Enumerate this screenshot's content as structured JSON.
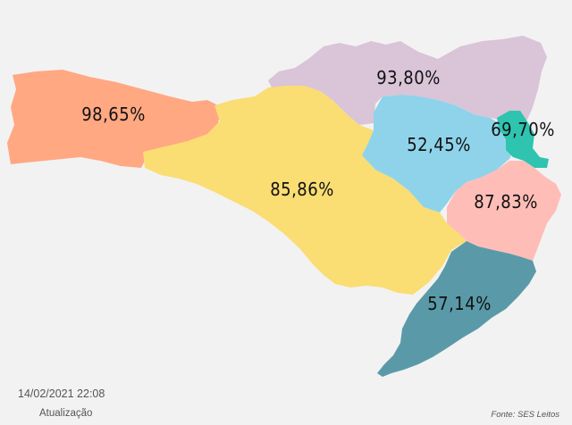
{
  "map": {
    "regions": [
      {
        "id": "grande-oeste",
        "label": "98,65%",
        "color": "#ffa882"
      },
      {
        "id": "meio-oeste-serra",
        "label": "85,86%",
        "color": "#fadd73"
      },
      {
        "id": "norte",
        "label": "93,80%",
        "color": "#d9c4d8"
      },
      {
        "id": "vale-itajai",
        "label": "52,45%",
        "color": "#8fd3ea"
      },
      {
        "id": "foz-itajai",
        "label": "69,70%",
        "color": "#2ec4b0"
      },
      {
        "id": "grande-florianopolis",
        "label": "87,83%",
        "color": "#ffbdb8"
      },
      {
        "id": "sul",
        "label": "57,14%",
        "color": "#5a9aa8"
      }
    ]
  },
  "footer": {
    "timestamp": "14/02/2021 22:08",
    "timestamp_label": "Atualização",
    "source": "Fonte: SES Leitos"
  }
}
